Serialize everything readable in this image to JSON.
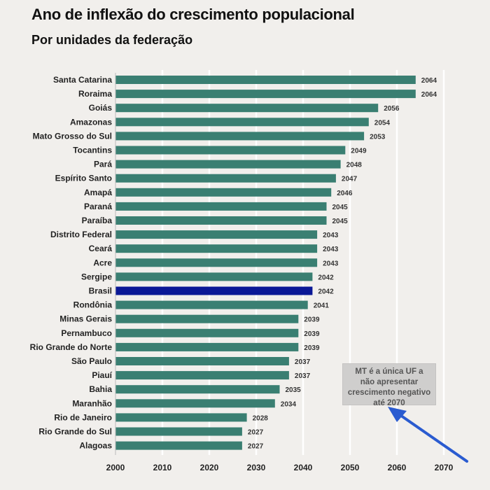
{
  "title": "Ano de inflexão do crescimento populacional",
  "subtitle": "Por unidades da federação",
  "annotation": "MT é a única UF a não apresentar crescimento negativo até 2070",
  "colors": {
    "bar": "#3a7f72",
    "highlight": "#0a1896",
    "grid": "#ffffff",
    "arrow": "#2a5bd0",
    "background": "#f1efec"
  },
  "chart_data": {
    "type": "bar",
    "orientation": "horizontal",
    "categories": [
      "Santa Catarina",
      "Roraima",
      "Goiás",
      "Amazonas",
      "Mato Grosso do Sul",
      "Tocantins",
      "Pará",
      "Espírito Santo",
      "Amapá",
      "Paraná",
      "Paraíba",
      "Distrito Federal",
      "Ceará",
      "Acre",
      "Sergipe",
      "Brasil",
      "Rondônia",
      "Minas Gerais",
      "Pernambuco",
      "Rio Grande do Norte",
      "São Paulo",
      "Piauí",
      "Bahia",
      "Maranhão",
      "Rio de Janeiro",
      "Rio Grande do Sul",
      "Alagoas"
    ],
    "values": [
      2064,
      2064,
      2056,
      2054,
      2053,
      2049,
      2048,
      2047,
      2046,
      2045,
      2045,
      2043,
      2043,
      2043,
      2042,
      2042,
      2041,
      2039,
      2039,
      2039,
      2037,
      2037,
      2035,
      2034,
      2028,
      2027,
      2027
    ],
    "highlight": "Brasil",
    "xlim": [
      2000,
      2070
    ],
    "xticks": [
      2000,
      2010,
      2020,
      2030,
      2040,
      2050,
      2060,
      2070
    ],
    "grid": true
  }
}
